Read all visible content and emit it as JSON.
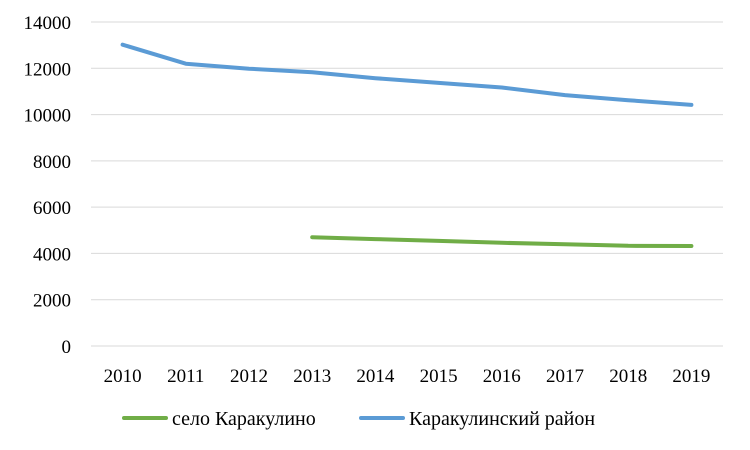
{
  "chart_data": {
    "type": "line",
    "title": "",
    "xlabel": "",
    "ylabel": "",
    "x": [
      "2010",
      "2011",
      "2012",
      "2013",
      "2014",
      "2015",
      "2016",
      "2017",
      "2018",
      "2019"
    ],
    "ylim": [
      0,
      14000
    ],
    "yticks": [
      0,
      2000,
      4000,
      6000,
      8000,
      10000,
      12000,
      14000
    ],
    "grid": true,
    "legend_position": "bottom",
    "series": [
      {
        "name": "село Каракулино",
        "color": "#70ad47",
        "values": [
          null,
          null,
          null,
          4700,
          4620,
          4540,
          4460,
          4400,
          4330,
          4320
        ]
      },
      {
        "name": "Каракулинский район",
        "color": "#5b9bd5",
        "values": [
          13020,
          12200,
          11980,
          11830,
          11570,
          11370,
          11170,
          10840,
          10620,
          10420
        ]
      }
    ]
  }
}
